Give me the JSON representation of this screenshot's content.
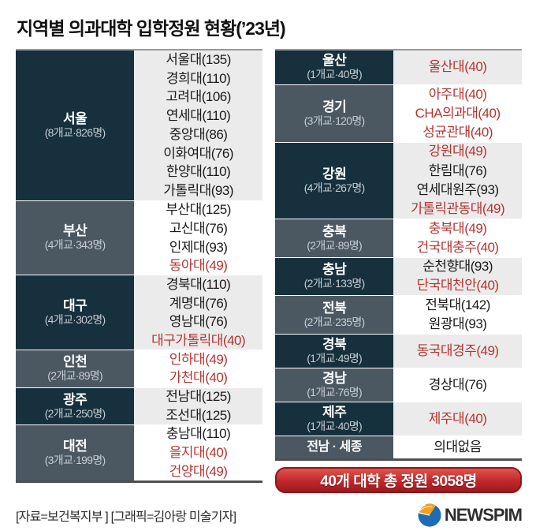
{
  "title": "지역별 의과대학 입학정원 현황(’23년)",
  "left_table": {
    "sections": [
      {
        "region": "서울",
        "count": "(8개교·826명)",
        "rows": [
          {
            "text": "서울대(135)",
            "red": false
          },
          {
            "text": "경희대(110)",
            "red": false
          },
          {
            "text": "고려대(106)",
            "red": false
          },
          {
            "text": "연세대(110)",
            "red": false
          },
          {
            "text": "중앙대(86)",
            "red": false
          },
          {
            "text": "이화여대(76)",
            "red": false
          },
          {
            "text": "한양대(110)",
            "red": false
          },
          {
            "text": "가톨릭대(93)",
            "red": false
          }
        ]
      },
      {
        "region": "부산",
        "count": "(4개교·343명)",
        "rows": [
          {
            "text": "부산대(125)",
            "red": false
          },
          {
            "text": "고신대(76)",
            "red": false
          },
          {
            "text": "인제대(93)",
            "red": false
          },
          {
            "text": "동아대(49)",
            "red": true
          }
        ]
      },
      {
        "region": "대구",
        "count": "(4개교·302명)",
        "rows": [
          {
            "text": "경북대(110)",
            "red": false
          },
          {
            "text": "계명대(76)",
            "red": false
          },
          {
            "text": "영남대(76)",
            "red": false
          },
          {
            "text": "대구가톨릭대(40)",
            "red": true
          }
        ]
      },
      {
        "region": "인천",
        "count": "(2개교·89명)",
        "rows": [
          {
            "text": "인하대(49)",
            "red": true
          },
          {
            "text": "가천대(40)",
            "red": true
          }
        ]
      },
      {
        "region": "광주",
        "count": "(2개교·250명)",
        "rows": [
          {
            "text": "전남대(125)",
            "red": false
          },
          {
            "text": "조선대(125)",
            "red": false
          }
        ]
      },
      {
        "region": "대전",
        "count": "(3개교·199명)",
        "rows": [
          {
            "text": "충남대(110)",
            "red": false
          },
          {
            "text": "을지대(40)",
            "red": true
          },
          {
            "text": "건양대(49)",
            "red": true
          }
        ]
      }
    ]
  },
  "right_table": {
    "sections": [
      {
        "region": "울산",
        "count": "(1개교·40명)",
        "rows": [
          {
            "text": "울산대(40)",
            "red": true
          }
        ]
      },
      {
        "region": "경기",
        "count": "(3개교·120명)",
        "rows": [
          {
            "text": "아주대(40)",
            "red": true
          },
          {
            "text": "CHA의과대(40)",
            "red": true
          },
          {
            "text": "성균관대(40)",
            "red": true
          }
        ]
      },
      {
        "region": "강원",
        "count": "(4개교·267명)",
        "rows": [
          {
            "text": "강원대(49)",
            "red": true
          },
          {
            "text": "한림대(76)",
            "red": false
          },
          {
            "text": "연세대원주(93)",
            "red": false
          },
          {
            "text": "가톨릭관동대(49)",
            "red": true
          }
        ]
      },
      {
        "region": "충북",
        "count": "(2개교·89명)",
        "rows": [
          {
            "text": "충북대(49)",
            "red": true
          },
          {
            "text": "건국대충주(40)",
            "red": true
          }
        ]
      },
      {
        "region": "충남",
        "count": "(2개교·133명)",
        "rows": [
          {
            "text": "순천향대(93)",
            "red": false
          },
          {
            "text": "단국대천안(40)",
            "red": true
          }
        ]
      },
      {
        "region": "전북",
        "count": "(2개교·235명)",
        "rows": [
          {
            "text": "전북대(142)",
            "red": false
          },
          {
            "text": "원광대(93)",
            "red": false
          }
        ]
      },
      {
        "region": "경북",
        "count": "(1개교·49명)",
        "rows": [
          {
            "text": "동국대경주(49)",
            "red": true
          }
        ]
      },
      {
        "region": "경남",
        "count": "(1개교·76명)",
        "rows": [
          {
            "text": "경상대(76)",
            "red": false
          }
        ]
      },
      {
        "region": "제주",
        "count": "(1개교·40명)",
        "rows": [
          {
            "text": "제주대(40)",
            "red": true
          }
        ]
      },
      {
        "region": "전남 · 세종",
        "count": null,
        "compact": true,
        "rows": [
          {
            "text": "의대없음",
            "red": false
          }
        ]
      }
    ]
  },
  "badge": {
    "text": "40개 대학 총 정원 3058명"
  },
  "footer": {
    "credits": "[자료=보건복지부 ] [그래픽=김아랑 미술기자]"
  },
  "logo": {
    "text": "NEWSPIM"
  },
  "colors": {
    "header_dark": "#16303d",
    "header_slate": "#4b5862",
    "row_gray": "#ebebeb",
    "text_dark": "#1a1a1a",
    "highlight_red": "#b23530",
    "badge_red": "#c0272d",
    "badge_border": "#8d1717",
    "logo_blue": "#1e6cb4",
    "logo_orange": "#f5a01c"
  }
}
